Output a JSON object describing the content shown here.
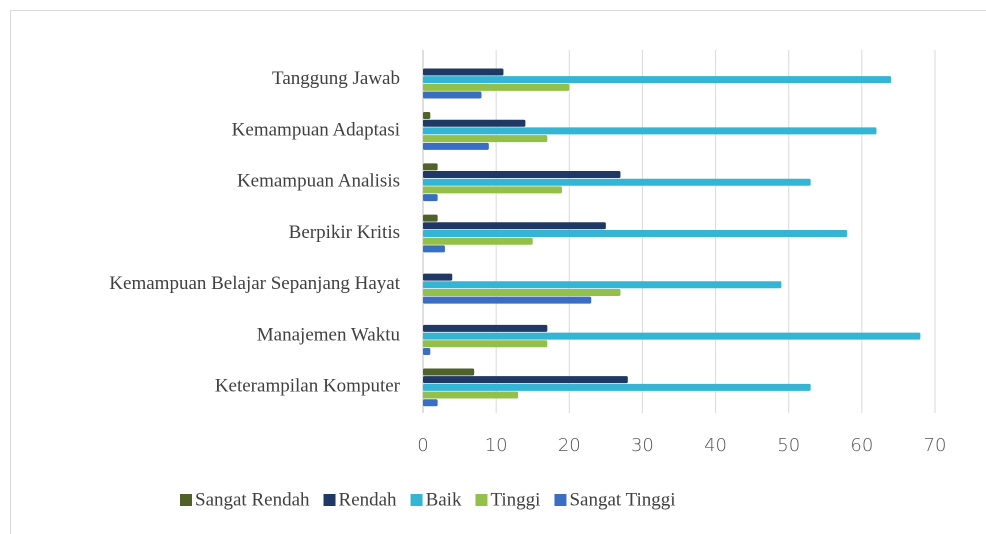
{
  "chart_data": {
    "type": "bar",
    "orientation": "horizontal",
    "categories": [
      "Tanggung Jawab",
      "Kemampuan Adaptasi",
      "Kemampuan Analisis",
      "Berpikir Kritis",
      "Kemampuan Belajar Sepanjang Hayat",
      "Manajemen Waktu",
      "Keterampilan Komputer"
    ],
    "series": [
      {
        "name": "Sangat Rendah",
        "color": "#4f6228",
        "values": [
          0,
          1,
          2,
          2,
          0,
          0,
          7
        ]
      },
      {
        "name": "Rendah",
        "color": "#1f3864",
        "values": [
          11,
          14,
          27,
          25,
          4,
          17,
          28
        ]
      },
      {
        "name": "Baik",
        "color": "#33b5d3",
        "values": [
          64,
          62,
          53,
          58,
          49,
          68,
          53
        ]
      },
      {
        "name": "Tinggi",
        "color": "#92c04a",
        "values": [
          20,
          17,
          19,
          15,
          27,
          17,
          13
        ]
      },
      {
        "name": "Sangat Tinggi",
        "color": "#3a6ec2",
        "values": [
          8,
          9,
          2,
          3,
          23,
          1,
          2
        ]
      }
    ],
    "xlim": [
      0,
      70
    ],
    "xticks": [
      0,
      10,
      20,
      30,
      40,
      50,
      60,
      70
    ],
    "grid": true,
    "legend": "bottom"
  }
}
